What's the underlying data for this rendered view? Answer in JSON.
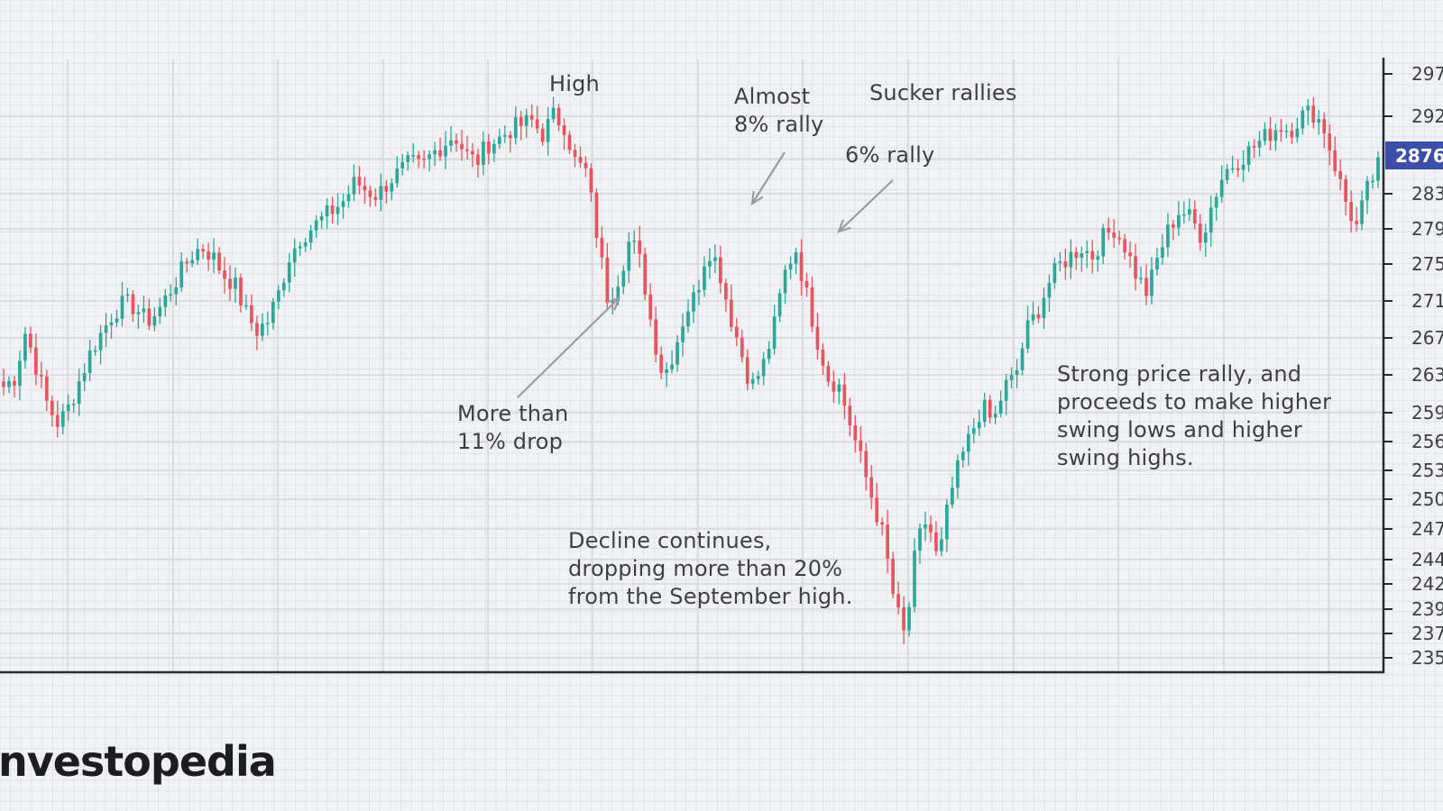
{
  "chart_data": {
    "type": "candlestick",
    "y_ticks": [
      "297",
      "292",
      "283",
      "279",
      "275",
      "271",
      "267",
      "263",
      "259",
      "256",
      "253",
      "250",
      "247",
      "244",
      "242",
      "239",
      "237",
      "235"
    ],
    "last_price_label": "2876",
    "colors": {
      "up": "#2ea69a",
      "down": "#e8545f",
      "grid": "#d6d8dc",
      "axis": "#2b2b2b",
      "price_tag": "#3b4fa8",
      "arrow": "#9a9ca1"
    },
    "approx_closes": [
      2640,
      2650,
      2700,
      2660,
      2620,
      2600,
      2620,
      2650,
      2680,
      2700,
      2720,
      2730,
      2725,
      2710,
      2720,
      2740,
      2760,
      2780,
      2790,
      2780,
      2760,
      2750,
      2720,
      2700,
      2710,
      2740,
      2780,
      2800,
      2810,
      2820,
      2830,
      2840,
      2860,
      2850,
      2845,
      2860,
      2870,
      2880,
      2875,
      2890,
      2900,
      2910,
      2890,
      2880,
      2900,
      2905,
      2915,
      2920,
      2925,
      2910,
      2930,
      2920,
      2880,
      2870,
      2800,
      2730,
      2760,
      2800,
      2770,
      2700,
      2650,
      2680,
      2720,
      2740,
      2790,
      2770,
      2720,
      2680,
      2640,
      2660,
      2700,
      2760,
      2790,
      2740,
      2690,
      2650,
      2640,
      2600,
      2560,
      2520,
      2480,
      2410,
      2370,
      2470,
      2500,
      2450,
      2520,
      2560,
      2590,
      2620,
      2600,
      2640,
      2650,
      2700,
      2720,
      2750,
      2770,
      2780,
      2790,
      2780,
      2800,
      2810,
      2790,
      2760,
      2740,
      2780,
      2810,
      2830,
      2820,
      2800,
      2840,
      2870,
      2880,
      2890,
      2900,
      2910,
      2920,
      2915,
      2930,
      2935,
      2920,
      2880,
      2840,
      2810,
      2850,
      2876
    ]
  },
  "annotations": {
    "high": "High",
    "almost_8": "Almost\n8% rally",
    "sucker": "Sucker rallies",
    "six_pct": "6% rally",
    "drop": "More than\n11% drop",
    "decline": "Decline continues,\ndropping more than 20%\nfrom the September high.",
    "strong": "Strong price rally, and\nproceeds to make higher\nswing lows and higher\nswing highs."
  },
  "brand": {
    "name": "nvestopedia"
  }
}
